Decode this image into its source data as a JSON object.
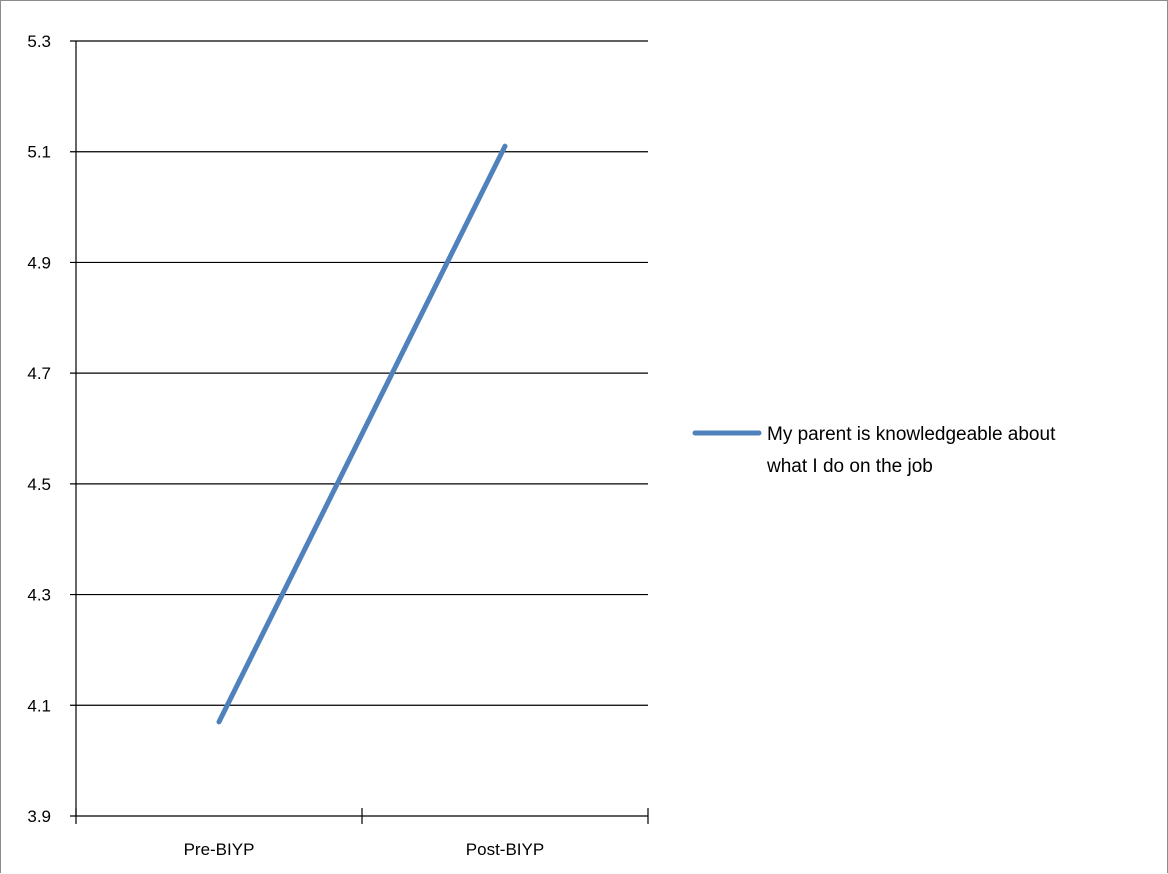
{
  "chart_data": {
    "type": "line",
    "categories": [
      "Pre-BIYP",
      "Post-BIYP"
    ],
    "series": [
      {
        "name": "My parent is knowledgeable about what I do on the job",
        "values": [
          4.07,
          5.11
        ],
        "color": "#4f81bd"
      }
    ],
    "title": "",
    "xlabel": "",
    "ylabel": "",
    "ylim": [
      3.9,
      5.3
    ],
    "yticks": [
      "3.9",
      "4.1",
      "4.3",
      "4.5",
      "4.7",
      "4.9",
      "5.1",
      "5.3"
    ],
    "grid": true,
    "legend_position": "right"
  },
  "legend": {
    "line1": "My parent is knowledgeable about",
    "line2": "what I do on the job"
  }
}
